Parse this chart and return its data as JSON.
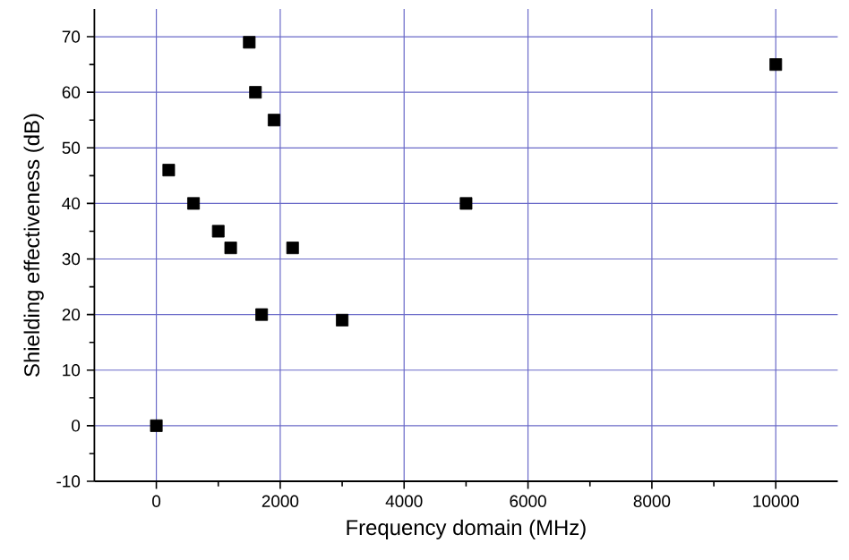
{
  "chart_data": {
    "type": "scatter",
    "xlabel": "Frequency domain (MHz)",
    "ylabel": "Shielding effectiveness (dB)",
    "x": [
      0,
      200,
      600,
      1000,
      1200,
      1500,
      1600,
      1700,
      1900,
      2200,
      3000,
      5000,
      10000
    ],
    "values": [
      0,
      46,
      40,
      35,
      32,
      69,
      60,
      20,
      55,
      32,
      19,
      40,
      65
    ],
    "color": "#000000",
    "marker": "square",
    "xlim": [
      -1000,
      11000
    ],
    "xticks": [
      0,
      2000,
      4000,
      6000,
      8000,
      10000
    ],
    "ylim": [
      -10,
      75
    ],
    "yticks": [
      -10,
      0,
      10,
      20,
      30,
      40,
      50,
      60,
      70
    ],
    "grid": true
  }
}
